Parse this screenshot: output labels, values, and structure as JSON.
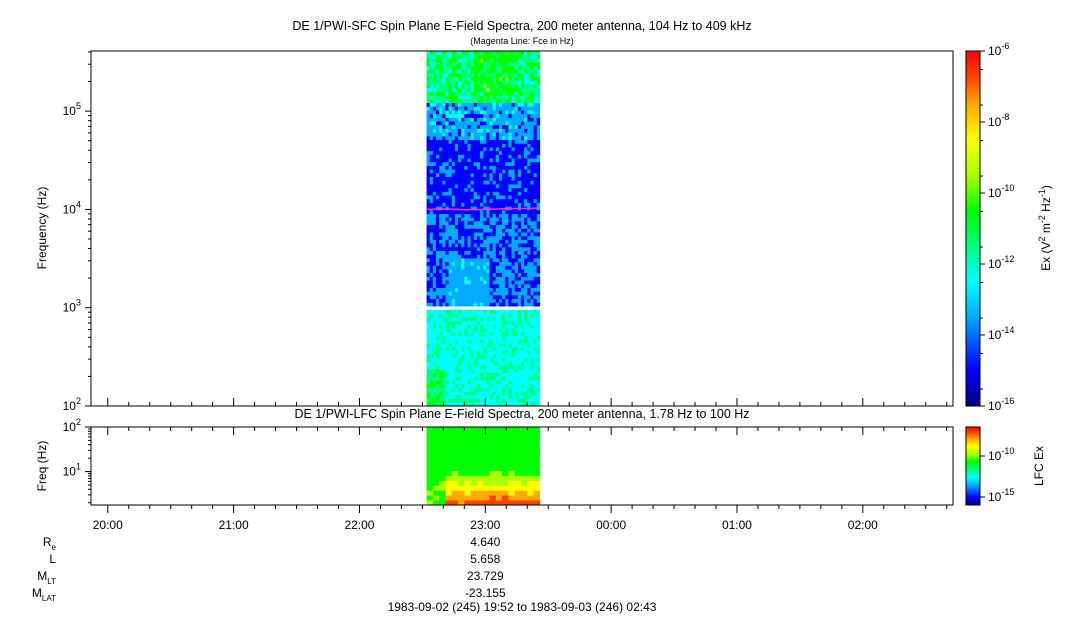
{
  "chart_data": [
    {
      "type": "heatmap",
      "title": "DE 1/PWI-SFC  Spin Plane E-Field Spectra, 200 meter antenna, 104 Hz to 409 kHz",
      "subtitle": "(Magenta Line: Fce in Hz)",
      "ylabel": "Frequency (Hz)",
      "y_scale": "log",
      "ylim": [
        100,
        409000
      ],
      "yticks": [
        {
          "value": 100,
          "base": "10",
          "exp": "2"
        },
        {
          "value": 1000,
          "base": "10",
          "exp": "3"
        },
        {
          "value": 10000,
          "base": "10",
          "exp": "4"
        },
        {
          "value": 100000,
          "base": "10",
          "exp": "5"
        }
      ],
      "data_interval": {
        "start": "22:32",
        "end": "23:26"
      },
      "fce_line": {
        "color": "#ff33cc",
        "points": [
          [
            22.54,
            10000
          ],
          [
            22.7,
            10100
          ],
          [
            22.85,
            9900
          ],
          [
            23.0,
            10000
          ],
          [
            23.2,
            10200
          ],
          [
            23.42,
            10300
          ]
        ]
      },
      "colorbar": {
        "label_parts": [
          "Ex (V",
          "2",
          " m",
          "-2",
          " Hz",
          "-1",
          ")"
        ],
        "scale": "log",
        "range": [
          1e-16,
          1e-06
        ],
        "ticks": [
          {
            "value": 1e-06,
            "base": "10",
            "exp": "-6"
          },
          {
            "value": 1e-08,
            "base": "10",
            "exp": "-8"
          },
          {
            "value": 1e-10,
            "base": "10",
            "exp": "-10"
          },
          {
            "value": 1e-12,
            "base": "10",
            "exp": "-12"
          },
          {
            "value": 1e-14,
            "base": "10",
            "exp": "-14"
          },
          {
            "value": 1e-16,
            "base": "10",
            "exp": "-16"
          }
        ]
      }
    },
    {
      "type": "heatmap",
      "title": "DE 1/PWI-LFC  Spin Plane E-Field Spectra, 200 meter antenna, 1.78 Hz to 100 Hz",
      "ylabel": "Freq (Hz)",
      "y_scale": "log",
      "ylim": [
        1.78,
        100
      ],
      "yticks": [
        {
          "value": 10,
          "base": "10",
          "exp": "1"
        },
        {
          "value": 100,
          "base": "10",
          "exp": "2"
        }
      ],
      "data_interval": {
        "start": "22:32",
        "end": "23:26"
      },
      "colorbar": {
        "label": "LFC Ex",
        "scale": "log",
        "ticks": [
          {
            "value": 1e-10,
            "base": "10",
            "exp": "-10"
          },
          {
            "value": 1e-15,
            "base": "10",
            "exp": "-15"
          }
        ]
      }
    }
  ],
  "time_axis": {
    "start": "19:52",
    "end": "02:43",
    "ticks": [
      "20:00",
      "21:00",
      "22:00",
      "23:00",
      "00:00",
      "01:00",
      "02:00"
    ]
  },
  "ephemeris": {
    "rows": [
      {
        "base": "R",
        "sub": "e",
        "value": "4.640"
      },
      {
        "base": "L",
        "sub": "",
        "value": "5.658"
      },
      {
        "base": "M",
        "sub": "LT",
        "value": "23.729"
      },
      {
        "base": "M",
        "sub": "LAT",
        "value": "-23.155"
      }
    ],
    "time_range": "1983-09-02 (245) 19:52 to 1983-09-03 (246) 02:43"
  },
  "colors": {
    "colormap": [
      "#000080",
      "#0000ff",
      "#00aaff",
      "#00ffff",
      "#00ff80",
      "#00ff00",
      "#aaff00",
      "#ffff00",
      "#ffaa00",
      "#ff4000",
      "#ff0000"
    ],
    "fce_line": "#ff33cc"
  }
}
